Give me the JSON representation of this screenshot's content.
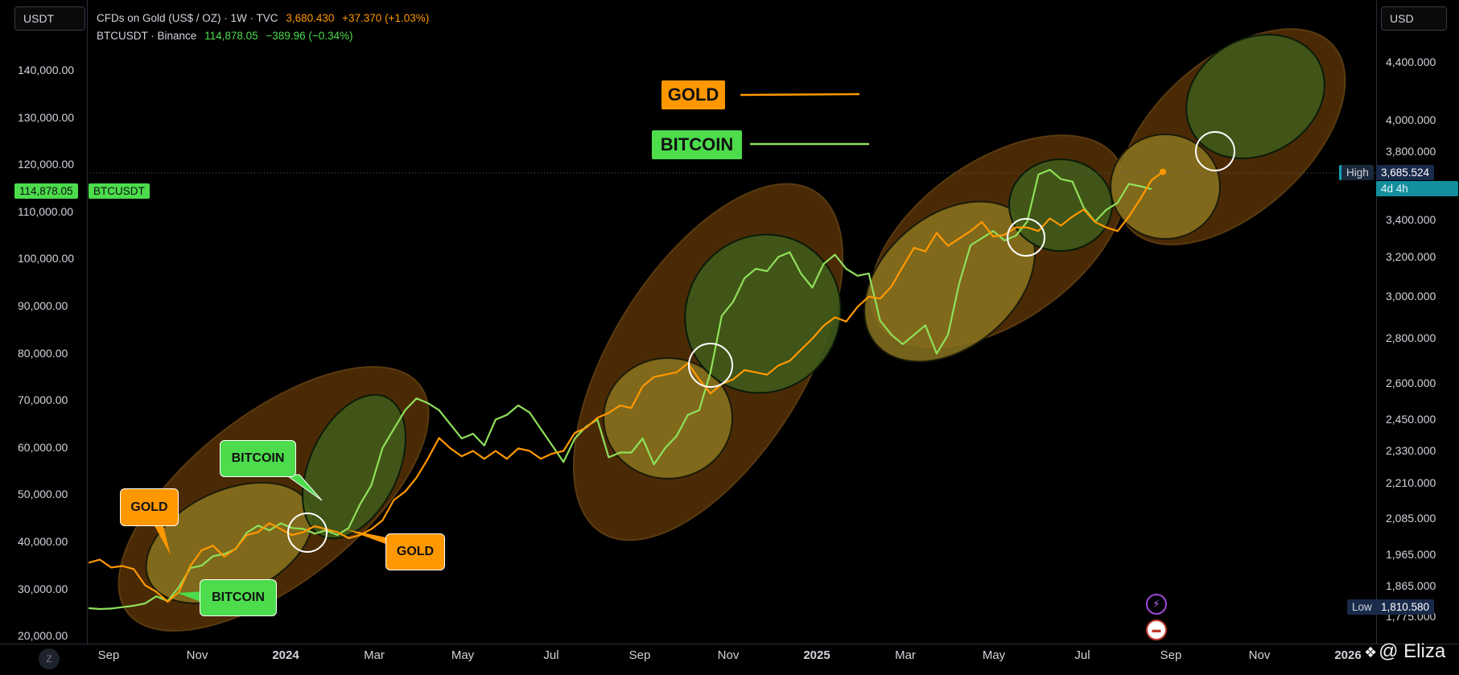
{
  "header": {
    "left_unit": "USDT",
    "right_unit": "USD",
    "gold_legend": {
      "name": "CFDs on Gold (US$ / OZ) · 1W · TVC",
      "price": "3,680.430",
      "change": "+37.370 (+1.03%)"
    },
    "btc_legend": {
      "name": "BTCUSDT · Binance",
      "price": "114,878.05",
      "change": "−389.96 (−0.34%)"
    }
  },
  "left_axis": {
    "ticks": [
      "140,000.00",
      "130,000.00",
      "120,000.00",
      "110,000.00",
      "100,000.00",
      "90,000.00",
      "80,000.00",
      "70,000.00",
      "60,000.00",
      "50,000.00",
      "40,000.00",
      "30,000.00",
      "20,000.00"
    ],
    "price_tag": "114,878.05",
    "symbol_tag": "BTCUSDT"
  },
  "right_axis": {
    "ticks": [
      "4,400.000",
      "4,000.000",
      "3,800.000",
      "3,400.000",
      "3,200.000",
      "3,000.000",
      "2,800.000",
      "2,600.000",
      "2,450.000",
      "2,330.000",
      "2,210.000",
      "2,085.000",
      "1,965.000",
      "1,865.000",
      "1,775.000"
    ],
    "high_label": "High",
    "high_value": "3,685.524",
    "countdown": "4d 4h",
    "low_label": "Low",
    "low_value": "1,810.580"
  },
  "time_axis": {
    "labels": [
      "Sep",
      "Nov",
      "2024",
      "Mar",
      "May",
      "Jul",
      "Sep",
      "Nov",
      "2025",
      "Mar",
      "May",
      "Jul",
      "Sep",
      "Nov",
      "2026"
    ]
  },
  "annotations": {
    "legend_gold": "GOLD",
    "legend_bitcoin": "BITCOIN",
    "callout_gold_1": "GOLD",
    "callout_bitcoin_1": "BITCOIN",
    "callout_bitcoin_2": "BITCOIN",
    "callout_gold_2": "GOLD"
  },
  "footer": {
    "z_button": "Z",
    "watermark": "@ Eliza"
  },
  "colors": {
    "gold": "#ff9800",
    "bitcoin": "#8fe05a",
    "background": "#000000",
    "ellipse_outer": "#4a2a05",
    "ellipse_gold": "#8a7420",
    "ellipse_btc": "#3f5a1a"
  },
  "chart_data": {
    "type": "line",
    "x_unit": "weekly, Aug 2023 – Sep 2025",
    "x_labels": [
      "Sep",
      "Nov",
      "2024",
      "Mar",
      "May",
      "Jul",
      "Sep",
      "Nov",
      "2025",
      "Mar",
      "May",
      "Jul",
      "Sep",
      "Nov",
      "2026"
    ],
    "series": [
      {
        "name": "CFDs on Gold (US$ / OZ)",
        "axis": "right",
        "values": [
          1940,
          1950,
          1925,
          1930,
          1920,
          1870,
          1850,
          1820,
          1850,
          1930,
          1980,
          1995,
          1960,
          1985,
          2030,
          2040,
          2070,
          2050,
          2030,
          2040,
          2060,
          2050,
          2040,
          2020,
          2030,
          2050,
          2080,
          2150,
          2180,
          2230,
          2300,
          2380,
          2340,
          2310,
          2330,
          2300,
          2330,
          2300,
          2340,
          2330,
          2300,
          2320,
          2330,
          2400,
          2420,
          2460,
          2480,
          2510,
          2500,
          2590,
          2630,
          2640,
          2650,
          2690,
          2620,
          2560,
          2600,
          2620,
          2660,
          2650,
          2640,
          2680,
          2700,
          2750,
          2800,
          2860,
          2900,
          2880,
          2950,
          3000,
          2990,
          3050,
          3150,
          3250,
          3230,
          3330,
          3260,
          3300,
          3340,
          3390,
          3310,
          3320,
          3360,
          3360,
          3340,
          3410,
          3370,
          3420,
          3460,
          3390,
          3360,
          3340,
          3420,
          3520,
          3630,
          3680
        ],
        "high": "3,685.524",
        "low": "1,810.580"
      },
      {
        "name": "BTCUSDT",
        "axis": "left",
        "values": [
          26000,
          25800,
          25900,
          26200,
          26500,
          27000,
          28500,
          27500,
          30500,
          34500,
          35000,
          37000,
          37500,
          38500,
          42000,
          43500,
          42500,
          44000,
          43000,
          42800,
          41800,
          42500,
          41500,
          43000,
          48000,
          52000,
          60000,
          64000,
          68000,
          70500,
          69500,
          68000,
          65000,
          62000,
          63000,
          60500,
          66000,
          67000,
          69000,
          67500,
          64000,
          60500,
          57000,
          62000,
          64500,
          66000,
          58000,
          59000,
          59000,
          62000,
          56500,
          60000,
          62500,
          67000,
          68000,
          76000,
          88000,
          91000,
          96000,
          98000,
          97500,
          100500,
          101500,
          97000,
          94000,
          99000,
          101000,
          98000,
          96500,
          97000,
          87000,
          84000,
          82000,
          84000,
          86000,
          80000,
          84000,
          95000,
          103000,
          104500,
          106000,
          104000,
          105000,
          108000,
          118000,
          119000,
          117000,
          116500,
          111000,
          108000,
          110500,
          112000,
          116000,
          115500,
          114900
        ],
        "last": "114,878.05"
      }
    ],
    "left_axis": {
      "label": "USDT",
      "ylim": [
        20000,
        140000
      ]
    },
    "right_axis": {
      "label": "USD",
      "scale": "log",
      "ylim": [
        1775,
        4400
      ]
    },
    "grid": false,
    "legend": "top-left"
  }
}
